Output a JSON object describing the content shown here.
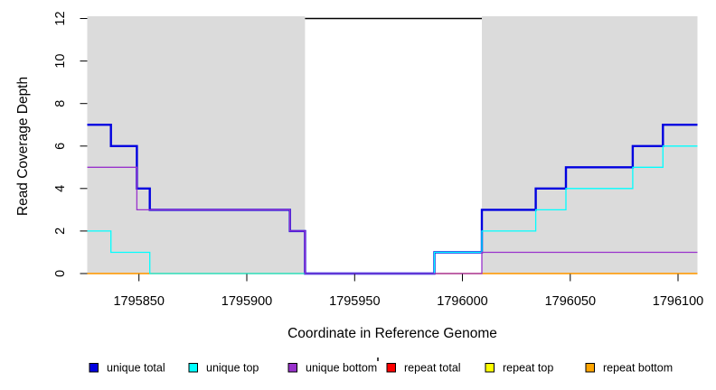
{
  "figure": {
    "background": "#FFFFFF",
    "mask_color": "#DBDBDB",
    "text_color": "#000000"
  },
  "chart_data": {
    "type": "line",
    "step_mode": "post",
    "title": "",
    "xlabel": "Coordinate in Reference Genome",
    "ylabel": "Read Coverage Depth",
    "xlim": [
      1795826,
      1796109
    ],
    "ylim": [
      0,
      12
    ],
    "x_ticks": [
      1795850,
      1795900,
      1795950,
      1796000,
      1796050,
      1796100
    ],
    "y_ticks": [
      0,
      2,
      4,
      6,
      8,
      10,
      12
    ],
    "grid": false,
    "masked_regions": [
      {
        "start": 1795826,
        "end": 1795927
      },
      {
        "start": 1796009,
        "end": 1796109
      }
    ],
    "boundary_line": {
      "y": 12,
      "start": 1795927,
      "end": 1796009,
      "color": "#000000",
      "width": 1.5
    },
    "series": [
      {
        "name": "repeat top",
        "color": "#FFFF00",
        "width": 1.3,
        "points": [
          [
            1795826,
            0
          ],
          [
            1796109,
            0
          ]
        ]
      },
      {
        "name": "repeat total",
        "color": "#FF0000",
        "width": 1.3,
        "points": [
          [
            1795826,
            0
          ],
          [
            1796109,
            0
          ]
        ]
      },
      {
        "name": "repeat bottom",
        "color": "#FFA500",
        "width": 1.3,
        "points": [
          [
            1795826,
            0
          ],
          [
            1796109,
            0
          ]
        ]
      },
      {
        "name": "unique total",
        "color": "#0000E0",
        "width": 2.4,
        "points": [
          [
            1795826,
            7
          ],
          [
            1795837,
            6
          ],
          [
            1795849,
            4
          ],
          [
            1795855,
            3
          ],
          [
            1795920,
            2
          ],
          [
            1795927,
            0
          ],
          [
            1795987,
            1
          ],
          [
            1796009,
            3
          ],
          [
            1796034,
            4
          ],
          [
            1796048,
            5
          ],
          [
            1796079,
            6
          ],
          [
            1796093,
            7
          ],
          [
            1796109,
            7
          ]
        ]
      },
      {
        "name": "unique top",
        "color": "#00FFFF",
        "width": 1.3,
        "points": [
          [
            1795826,
            2
          ],
          [
            1795837,
            1
          ],
          [
            1795855,
            0
          ],
          [
            1795987,
            1
          ],
          [
            1796009,
            2
          ],
          [
            1796034,
            3
          ],
          [
            1796048,
            4
          ],
          [
            1796079,
            5
          ],
          [
            1796093,
            6
          ],
          [
            1796109,
            6
          ]
        ]
      },
      {
        "name": "unique bottom",
        "color": "#9932CC",
        "width": 1.3,
        "points": [
          [
            1795826,
            5
          ],
          [
            1795849,
            3
          ],
          [
            1795920,
            2
          ],
          [
            1795927,
            0
          ],
          [
            1796009,
            1
          ],
          [
            1796109,
            1
          ]
        ]
      }
    ]
  },
  "legend": {
    "items": [
      {
        "label": "unique total",
        "color": "#0000E0"
      },
      {
        "label": "unique top",
        "color": "#00FFFF"
      },
      {
        "label": "unique bottom",
        "color": "#9932CC"
      },
      {
        "label": "repeat total",
        "color": "#FF0000"
      },
      {
        "label": "repeat top",
        "color": "#FFFF00"
      },
      {
        "label": "repeat bottom",
        "color": "#FFA500"
      }
    ]
  }
}
